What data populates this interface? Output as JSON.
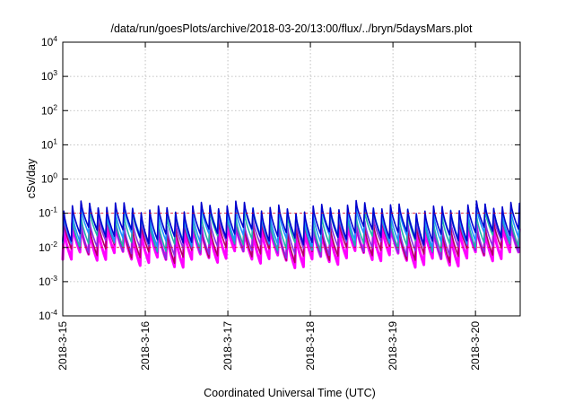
{
  "chart_data": {
    "type": "line",
    "title": "/data/run/goesPlots/archive/2018-03-20/13:00/flux/../bryn/5daysMars.plot",
    "xlabel": "Coordinated Universal Time (UTC)",
    "ylabel": "cSv/day",
    "yscale": "log",
    "ylim": [
      0.0001,
      10000
    ],
    "y_ticks": [
      {
        "base": "10",
        "exp": "-4",
        "value": 0.0001
      },
      {
        "base": "10",
        "exp": "-3",
        "value": 0.001
      },
      {
        "base": "10",
        "exp": "-2",
        "value": 0.01
      },
      {
        "base": "10",
        "exp": "-1",
        "value": 0.1
      },
      {
        "base": "10",
        "exp": "0",
        "value": 1
      },
      {
        "base": "10",
        "exp": "1",
        "value": 10
      },
      {
        "base": "10",
        "exp": "2",
        "value": 100
      },
      {
        "base": "10",
        "exp": "3",
        "value": 1000
      },
      {
        "base": "10",
        "exp": "4",
        "value": 10000
      }
    ],
    "x_ticks": [
      "2018-3-15",
      "2018-3-16",
      "2018-3-17",
      "2018-3-18",
      "2018-3-19",
      "2018-3-20"
    ],
    "xlim": [
      "2018-03-15T00:00",
      "2018-03-20T13:00"
    ],
    "grid": true,
    "sawtooth_period_hours": 2.5,
    "reference_lines": [
      0.1,
      0.01
    ],
    "series": [
      {
        "color": "#ff00ff",
        "peak": 0.036,
        "trough": 0.0045
      },
      {
        "color": "#b00060",
        "peak": 0.045,
        "trough": 0.0065
      },
      {
        "color": "#8a2be2",
        "peak": 0.055,
        "trough": 0.0085
      },
      {
        "color": "#20b2aa",
        "peak": 0.085,
        "trough": 0.013
      },
      {
        "color": "#1e90ff",
        "peak": 0.12,
        "trough": 0.018
      },
      {
        "color": "#0000cd",
        "peak": 0.15,
        "trough": 0.022
      }
    ]
  }
}
